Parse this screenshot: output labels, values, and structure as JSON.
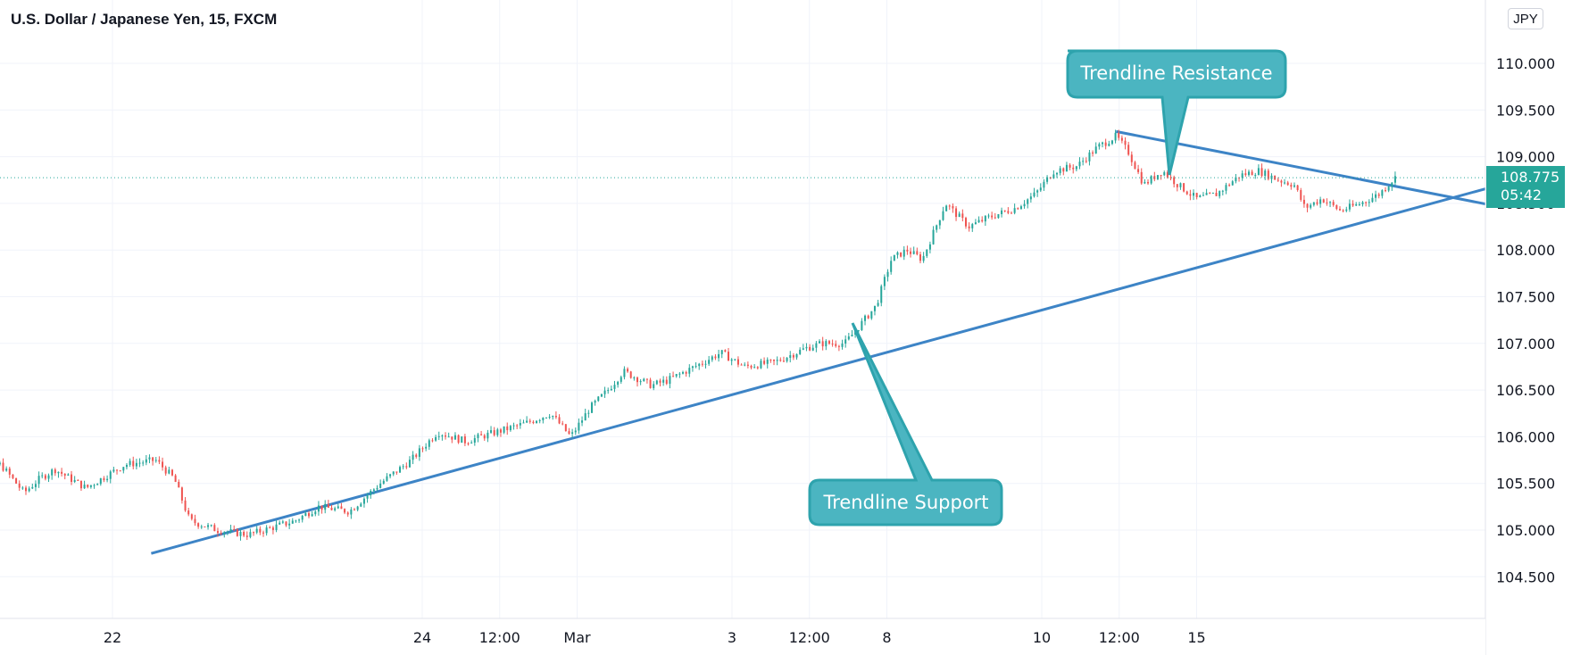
{
  "header": {
    "title": "U.S. Dollar / Japanese Yen, 15, FXCM"
  },
  "currency_button": "JPY",
  "price_tag": {
    "price": "108.775",
    "countdown": "05:42",
    "color": "#26a69a"
  },
  "colors": {
    "up": "#26a69a",
    "down": "#ef5350",
    "trendline": "#3d84c6",
    "callout": "#4bb5c1",
    "callout_border": "#2ea3ad"
  },
  "callouts": {
    "resistance": "Trendline Resistance",
    "support": "Trendline Support"
  },
  "chart_data": {
    "type": "candlestick",
    "title": "U.S. Dollar / Japanese Yen, 15, FXCM",
    "xlabel": "",
    "ylabel": "",
    "ylim": [
      104.05,
      110.55
    ],
    "y_ticks": [
      104.5,
      105.0,
      105.5,
      106.0,
      106.5,
      107.0,
      107.5,
      108.0,
      108.5,
      109.0,
      109.5,
      110.0
    ],
    "y_tick_labels": [
      "104.500",
      "105.000",
      "105.500",
      "106.000",
      "106.500",
      "107.000",
      "107.500",
      "108.000",
      "108.500",
      "109.000",
      "109.500",
      "110.000"
    ],
    "x_ticks": [
      {
        "label": "22",
        "t": 1.0
      },
      {
        "label": "24",
        "t": 3.0
      },
      {
        "label": "12:00",
        "t": 3.5
      },
      {
        "label": "Mar",
        "t": 4.0
      },
      {
        "label": "3",
        "t": 5.0
      },
      {
        "label": "12:00",
        "t": 5.5
      },
      {
        "label": "8",
        "t": 6.0
      },
      {
        "label": "10",
        "t": 7.0
      },
      {
        "label": "12:00",
        "t": 7.5
      },
      {
        "label": "15",
        "t": 8.0
      }
    ],
    "last_price": 108.775,
    "price_path": [
      {
        "t": 0.0,
        "p": 105.75
      },
      {
        "t": 0.05,
        "p": 105.8
      },
      {
        "t": 0.2,
        "p": 105.7
      },
      {
        "t": 0.3,
        "p": 105.7
      },
      {
        "t": 0.45,
        "p": 105.4
      },
      {
        "t": 0.55,
        "p": 105.55
      },
      {
        "t": 0.65,
        "p": 105.65
      },
      {
        "t": 0.85,
        "p": 105.45
      },
      {
        "t": 1.1,
        "p": 105.7
      },
      {
        "t": 1.3,
        "p": 105.75
      },
      {
        "t": 1.42,
        "p": 105.55
      },
      {
        "t": 1.52,
        "p": 105.1
      },
      {
        "t": 1.7,
        "p": 105.0
      },
      {
        "t": 1.9,
        "p": 104.95
      },
      {
        "t": 2.2,
        "p": 105.1
      },
      {
        "t": 2.35,
        "p": 105.25
      },
      {
        "t": 2.55,
        "p": 105.2
      },
      {
        "t": 2.75,
        "p": 105.5
      },
      {
        "t": 2.95,
        "p": 105.75
      },
      {
        "t": 3.12,
        "p": 106.05
      },
      {
        "t": 3.3,
        "p": 105.95
      },
      {
        "t": 3.5,
        "p": 106.05
      },
      {
        "t": 3.7,
        "p": 106.15
      },
      {
        "t": 3.85,
        "p": 106.25
      },
      {
        "t": 3.98,
        "p": 106.0
      },
      {
        "t": 4.1,
        "p": 106.3
      },
      {
        "t": 4.22,
        "p": 106.5
      },
      {
        "t": 4.32,
        "p": 106.7
      },
      {
        "t": 4.5,
        "p": 106.55
      },
      {
        "t": 4.6,
        "p": 106.6
      },
      {
        "t": 4.78,
        "p": 106.75
      },
      {
        "t": 4.95,
        "p": 106.9
      },
      {
        "t": 5.1,
        "p": 106.75
      },
      {
        "t": 5.3,
        "p": 106.8
      },
      {
        "t": 5.5,
        "p": 106.95
      },
      {
        "t": 5.6,
        "p": 107.0
      },
      {
        "t": 5.75,
        "p": 107.0
      },
      {
        "t": 5.85,
        "p": 107.2
      },
      {
        "t": 5.95,
        "p": 107.4
      },
      {
        "t": 6.05,
        "p": 107.9
      },
      {
        "t": 6.15,
        "p": 108.0
      },
      {
        "t": 6.25,
        "p": 107.9
      },
      {
        "t": 6.4,
        "p": 108.5
      },
      {
        "t": 6.55,
        "p": 108.25
      },
      {
        "t": 6.68,
        "p": 108.35
      },
      {
        "t": 6.85,
        "p": 108.45
      },
      {
        "t": 6.98,
        "p": 108.6
      },
      {
        "t": 7.1,
        "p": 108.85
      },
      {
        "t": 7.25,
        "p": 108.9
      },
      {
        "t": 7.38,
        "p": 109.1
      },
      {
        "t": 7.5,
        "p": 109.22
      },
      {
        "t": 7.58,
        "p": 109.05
      },
      {
        "t": 7.68,
        "p": 108.7
      },
      {
        "t": 7.8,
        "p": 108.85
      },
      {
        "t": 7.9,
        "p": 108.7
      },
      {
        "t": 8.02,
        "p": 108.55
      },
      {
        "t": 8.15,
        "p": 108.6
      },
      {
        "t": 8.3,
        "p": 108.8
      },
      {
        "t": 8.42,
        "p": 108.85
      },
      {
        "t": 8.55,
        "p": 108.75
      },
      {
        "t": 8.65,
        "p": 108.7
      },
      {
        "t": 8.72,
        "p": 108.45
      },
      {
        "t": 8.83,
        "p": 108.55
      },
      {
        "t": 8.95,
        "p": 108.42
      },
      {
        "t": 9.08,
        "p": 108.5
      },
      {
        "t": 9.2,
        "p": 108.6
      },
      {
        "t": 9.3,
        "p": 108.775
      }
    ],
    "trendlines": [
      {
        "name": "Trendline Support",
        "t1": 1.25,
        "p1": 104.75,
        "t2": 10.05,
        "p2": 108.74
      },
      {
        "name": "Trendline Resistance",
        "t1": 7.48,
        "p1": 109.27,
        "t2": 10.0,
        "p2": 108.45
      }
    ],
    "grid": true,
    "legend": "none"
  }
}
